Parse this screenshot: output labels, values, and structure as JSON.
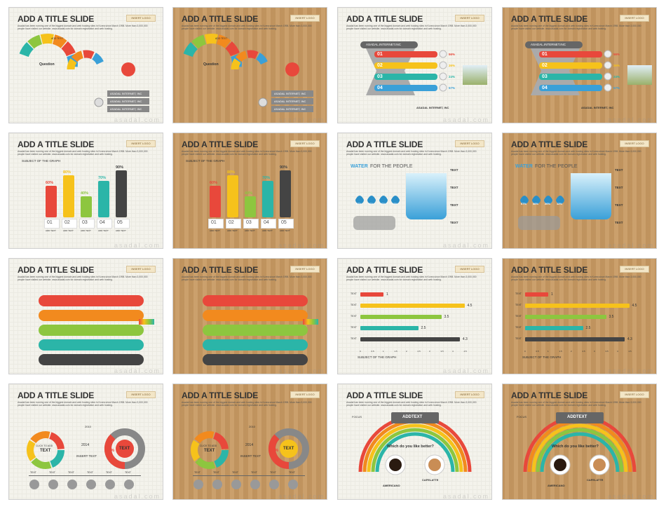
{
  "slide": {
    "title": "ADD A TITLE SLIDE",
    "subtitle": "Asadal has been running one of the biggest domain and web hosting sites in Korea since March 1998. More than 3,000,000 people have visited our website. www.asadal.com for domain registration and web hosting.",
    "logo": "INSERT LOGO",
    "watermark": "asadal.com"
  },
  "s1": {
    "question": "Question",
    "add_text": "ADD TEXT",
    "callouts": [
      "ASADAL INTERNET, INC",
      "ASADAL INTERNET, INC",
      "ASADAL INTERNET, INC"
    ]
  },
  "s3": {
    "header": "ASADAL.INTERNET.INC",
    "nums": [
      "01",
      "02",
      "03",
      "04"
    ],
    "pcts": [
      "56%",
      "36%",
      "24%",
      "57%"
    ],
    "footer": "ASADAL INTERNET, INC"
  },
  "s5": {
    "subject": "SUBJECT OF THE GRAPH",
    "pcts": [
      "60%",
      "80%",
      "40%",
      "70%",
      "90%"
    ],
    "nums": [
      "01",
      "02",
      "03",
      "04",
      "05"
    ],
    "add_text": "ADD TEXT"
  },
  "s7": {
    "heading_a": "WATER",
    "heading_b": "FOR THE PEOPLE",
    "pcts": [
      "67%",
      "46%",
      "26%",
      "12%"
    ],
    "text": "TEXT"
  },
  "s11": {
    "text": "TEXT",
    "values": [
      "1",
      "4.5",
      "3.5",
      "2.5",
      "4.3"
    ],
    "ticks": [
      "0",
      "0.5",
      "1",
      "1.5",
      "2",
      "2.5",
      "3",
      "3.5",
      "4",
      "4.5"
    ],
    "subject": "SUBJECT OF THE GRAPH"
  },
  "s13": {
    "click_to_add": "CLICK TO ADD",
    "text": "TEXT",
    "year_a": "2010",
    "year_b": "2014",
    "insert_text": "INSERT TEXT",
    "pct": "37%",
    "small_pcts": [
      "21%",
      "25%",
      "15%"
    ]
  },
  "s15": {
    "header": "ADDTEXT",
    "question": "Which do you like better?",
    "left": "AMERICANO",
    "right": "CAFELATTE",
    "focus": "FOCUS"
  }
}
